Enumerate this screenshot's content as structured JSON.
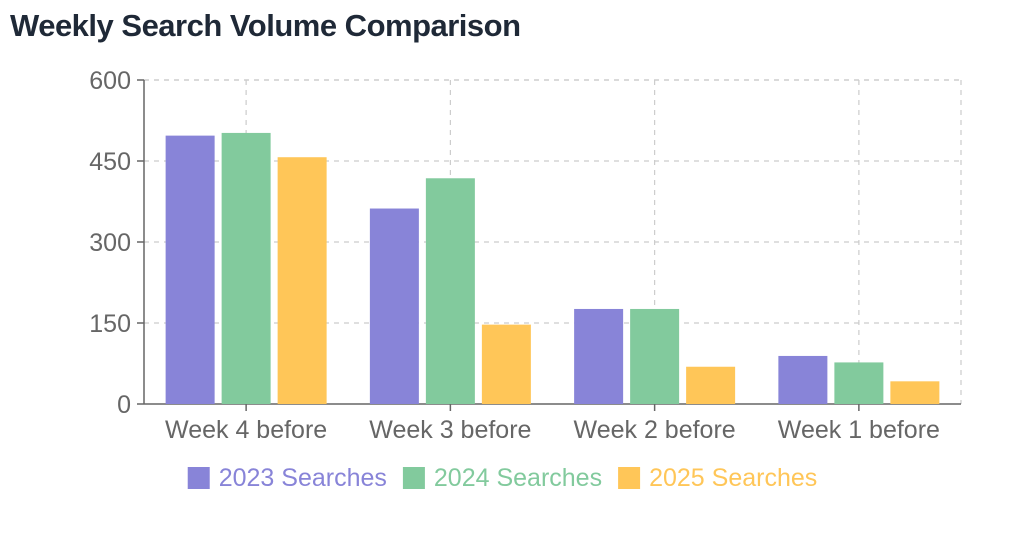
{
  "title": "Weekly Search Volume Comparison",
  "chart_data": {
    "type": "bar",
    "title": "Weekly Search Volume Comparison",
    "xlabel": "",
    "ylabel": "",
    "categories": [
      "Week 4 before",
      "Week 3 before",
      "Week 2 before",
      "Week 1 before"
    ],
    "series": [
      {
        "name": "2023 Searches",
        "color": "#8884d8",
        "values": [
          497,
          362,
          176,
          89
        ]
      },
      {
        "name": "2024 Searches",
        "color": "#82ca9d",
        "values": [
          502,
          418,
          176,
          77
        ]
      },
      {
        "name": "2025 Searches",
        "color": "#ffc658",
        "values": [
          457,
          147,
          69,
          42
        ]
      }
    ],
    "ylim": [
      0,
      600
    ],
    "yticks": [
      "0",
      "150",
      "300",
      "450",
      "600"
    ],
    "grid": true,
    "legend_position": "bottom"
  }
}
